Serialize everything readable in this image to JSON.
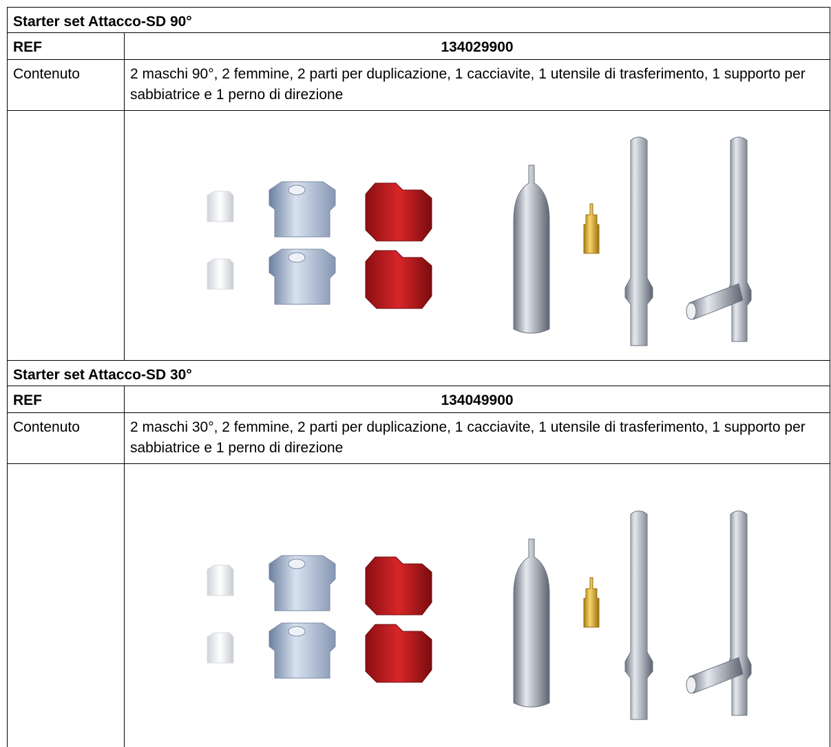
{
  "sections": [
    {
      "title": "Starter set Attacco-SD 90°",
      "ref_label": "REF",
      "ref": "134029900",
      "content_label": "Contenuto",
      "content": "2 maschi 90°, 2 femmine, 2 parti per duplicazione, 1 cacciavite, 1 utensile di trasferimento, 1 supporto per sabbiatrice e 1 perno di direzione"
    },
    {
      "title": "Starter set Attacco-SD 30°",
      "ref_label": "REF",
      "ref": "134049900",
      "content_label": "Contenuto",
      "content": "2 maschi 30°, 2 femmine, 2 parti per duplicazione, 1 cacciavite, 1 utensile di trasferimento, 1 supporto per sabbiatrice e 1 perno di direzione"
    }
  ]
}
